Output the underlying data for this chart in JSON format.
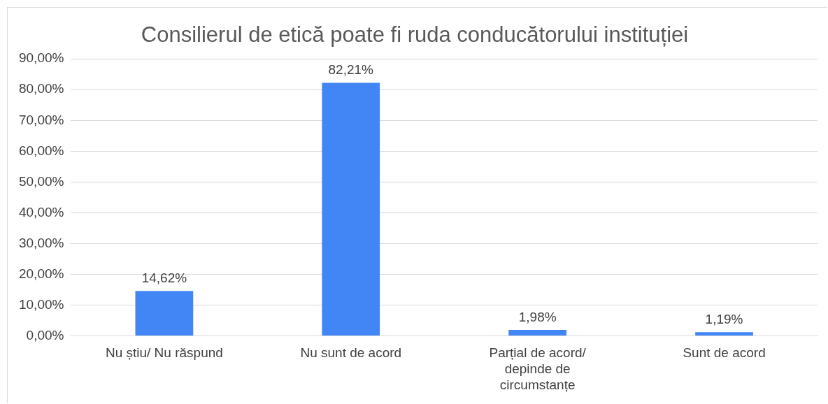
{
  "chart_data": {
    "type": "bar",
    "title": "Consilierul de etică poate fi ruda conducătorului instituției",
    "categories": [
      "Nu știu/ Nu răspund",
      "Nu sunt de acord",
      "Parțial de acord/ depinde de circumstanțe",
      "Sunt de acord"
    ],
    "values": [
      14.62,
      82.21,
      1.98,
      1.19
    ],
    "value_labels": [
      "14,62%",
      "82,21%",
      "1,98%",
      "1,19%"
    ],
    "color": "#4285f4",
    "ylim": [
      0,
      90
    ],
    "yticks": [
      {
        "value": 0,
        "label": "0,00%"
      },
      {
        "value": 10,
        "label": "10,00%"
      },
      {
        "value": 20,
        "label": "20,00%"
      },
      {
        "value": 30,
        "label": "30,00%"
      },
      {
        "value": 40,
        "label": "40,00%"
      },
      {
        "value": 50,
        "label": "50,00%"
      },
      {
        "value": 60,
        "label": "60,00%"
      },
      {
        "value": 70,
        "label": "70,00%"
      },
      {
        "value": 80,
        "label": "80,00%"
      },
      {
        "value": 90,
        "label": "90,00%"
      }
    ],
    "grid": "y",
    "legend": false
  }
}
